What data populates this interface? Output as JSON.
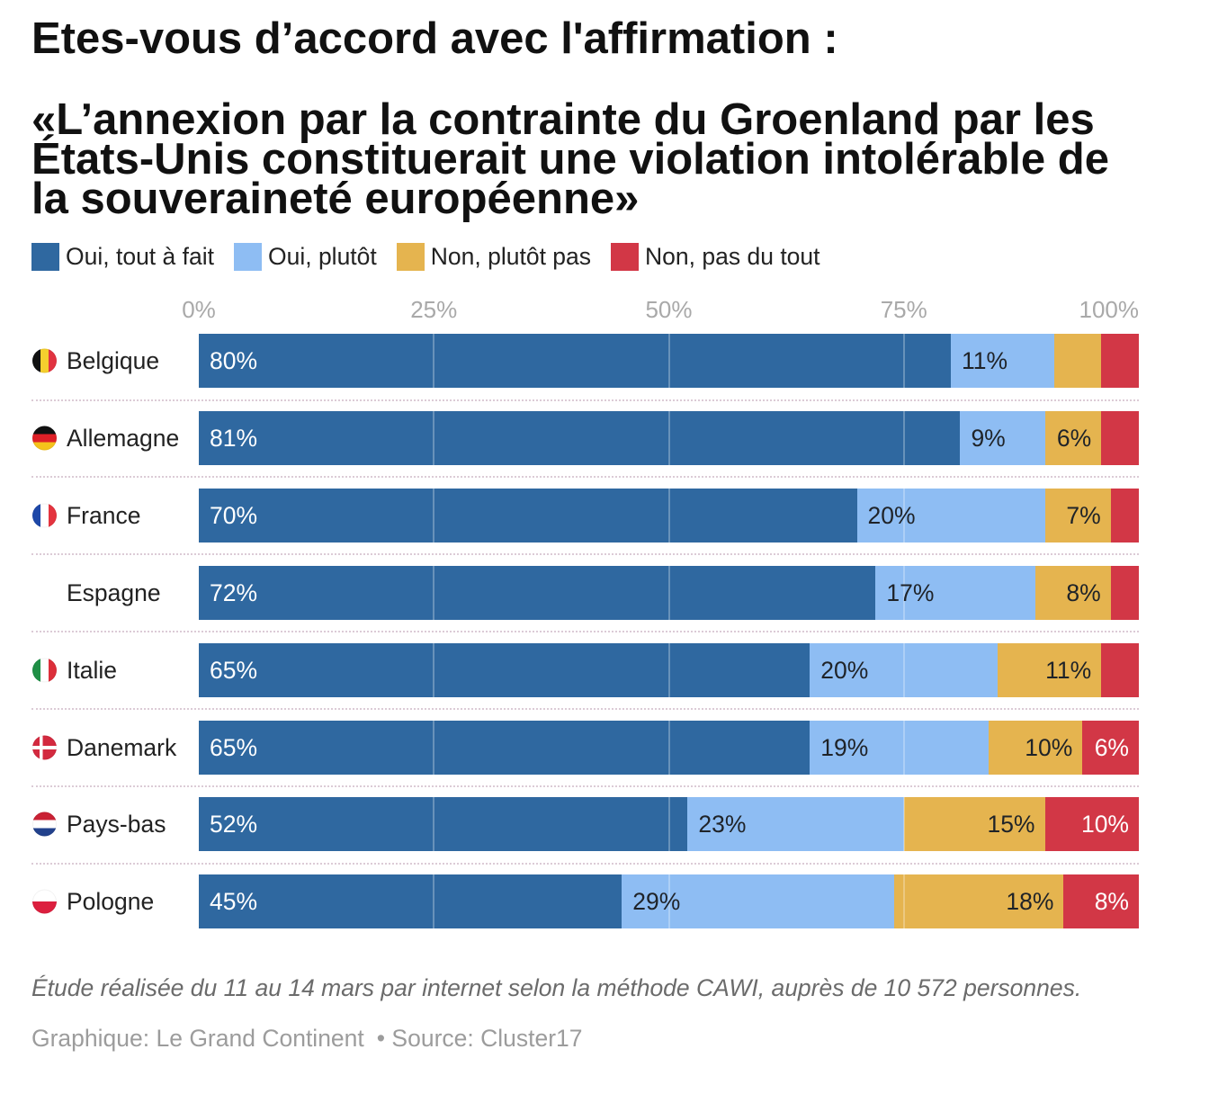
{
  "chart_data": {
    "type": "bar",
    "orientation": "horizontal",
    "stacked": true,
    "title": "Etes-vous d’accord avec l'affirmation :",
    "subtitle_lines": [
      "«L’annexion par la contrainte du Groenland par les",
      "États-Unis constituerait une violation intolérable de",
      "la souveraineté européenne»"
    ],
    "categories": [
      "Belgique",
      "Allemagne",
      "France",
      "Espagne",
      "Italie",
      "Danemark",
      "Pays-bas",
      "Pologne"
    ],
    "category_icons": [
      "belgium-flag-icon",
      "germany-flag-icon",
      "france-flag-icon",
      null,
      "italy-flag-icon",
      "denmark-flag-icon",
      "netherlands-flag-icon",
      "poland-flag-icon"
    ],
    "series": [
      {
        "name": "Oui, tout à fait",
        "color": "#2f68a0",
        "values": [
          80,
          81,
          70,
          72,
          65,
          65,
          52,
          45
        ],
        "labels": [
          "80%",
          "81%",
          "70%",
          "72%",
          "65%",
          "65%",
          "52%",
          "45%"
        ]
      },
      {
        "name": "Oui, plutôt",
        "color": "#8ebdf3",
        "values": [
          11,
          9,
          20,
          17,
          20,
          19,
          23,
          29
        ],
        "labels": [
          "11%",
          "9%",
          "20%",
          "17%",
          "20%",
          "19%",
          "23%",
          "29%"
        ]
      },
      {
        "name": "Non, plutôt pas",
        "color": "#e5b44f",
        "values": [
          5,
          6,
          7,
          8,
          11,
          10,
          15,
          18
        ],
        "labels": [
          null,
          "6%",
          "7%",
          "8%",
          "11%",
          "10%",
          "15%",
          "18%"
        ]
      },
      {
        "name": "Non, pas du tout",
        "color": "#d23746",
        "values": [
          4,
          4,
          3,
          3,
          4,
          6,
          10,
          8
        ],
        "labels": [
          null,
          null,
          null,
          null,
          null,
          "6%",
          "10%",
          "8%"
        ]
      }
    ],
    "xlim": [
      0,
      100
    ],
    "xticks": [
      0,
      25,
      50,
      75,
      100
    ],
    "xtick_labels": [
      "0%",
      "25%",
      "50%",
      "75%",
      "100%"
    ],
    "xtick_position": "top",
    "grid": true,
    "legend": "top-left"
  },
  "footer": {
    "note": "Étude réalisée du 11 au 14 mars par internet selon la méthode CAWI, auprès de 10 572 personnes.",
    "credit": "Graphique: Le Grand Continent",
    "source": "• Source: Cluster17"
  }
}
